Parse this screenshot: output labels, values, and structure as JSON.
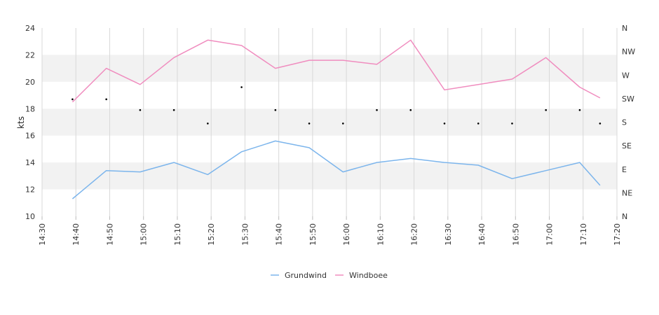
{
  "chart_data": {
    "type": "line",
    "ylabel": "kts",
    "ylim": [
      10,
      24
    ],
    "y_ticks": [
      "10",
      "12",
      "14",
      "16",
      "18",
      "20",
      "22",
      "24"
    ],
    "x_ticks": [
      "14:30",
      "14:40",
      "14:50",
      "15:00",
      "15:10",
      "15:20",
      "15:30",
      "15:40",
      "15:50",
      "16:00",
      "16:10",
      "16:20",
      "16:30",
      "16:40",
      "16:50",
      "17:00",
      "17:10",
      "17:20"
    ],
    "x_range_minutes": [
      "14:30",
      "17:20"
    ],
    "right_axis_labels": [
      "N",
      "NE",
      "E",
      "SE",
      "S",
      "SW",
      "W",
      "NW",
      "N"
    ],
    "grid": "vertical lines at x ticks, alternating horizontal bands",
    "legend_position": "bottom",
    "colors": {
      "Grundwind": "#7cb5ec",
      "Windboee": "#f08dbf",
      "direction": "#000000",
      "band": "#f2f2f2",
      "grid": "#d8d8d8"
    },
    "x": [
      "14:39",
      "14:49",
      "14:59",
      "15:09",
      "15:19",
      "15:29",
      "15:39",
      "15:49",
      "15:59",
      "16:09",
      "16:19",
      "16:29",
      "16:39",
      "16:49",
      "16:59",
      "17:09",
      "17:15"
    ],
    "series": [
      {
        "name": "Grundwind",
        "values": [
          11.3,
          13.4,
          13.3,
          14.0,
          13.1,
          14.8,
          15.6,
          15.1,
          13.3,
          14.0,
          14.3,
          14.0,
          13.8,
          12.8,
          13.4,
          14.0,
          12.3
        ]
      },
      {
        "name": "Windboee",
        "values": [
          18.5,
          21.0,
          19.8,
          21.8,
          23.1,
          22.7,
          21.0,
          21.6,
          21.6,
          21.3,
          23.1,
          19.4,
          19.8,
          20.2,
          21.8,
          19.6,
          18.8
        ]
      }
    ],
    "direction": [
      "SW",
      "SW",
      "S",
      "S",
      "S",
      "W",
      "S",
      "S",
      "S",
      "S",
      "S",
      "S",
      "S",
      "S",
      "S",
      "S",
      "S"
    ],
    "direction_y": [
      18.7,
      18.7,
      17.9,
      17.9,
      16.9,
      19.6,
      17.9,
      16.9,
      16.9,
      17.9,
      17.9,
      16.9,
      16.9,
      16.9,
      17.9,
      17.9,
      16.9
    ]
  }
}
